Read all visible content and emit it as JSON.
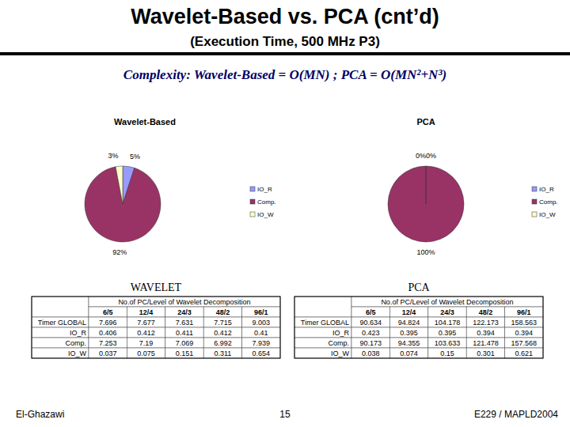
{
  "slide": {
    "title": "Wavelet-Based vs. PCA (cnt’d)",
    "subtitle": "(Execution Time, 500 MHz P3)",
    "complexity": "Complexity: Wavelet-Based = O(MN) ; PCA = O(MN²+N³)",
    "footer_left": "El-Ghazawi",
    "page": "15",
    "footer_right": "E229 / MAPLD2004"
  },
  "chart_data": [
    {
      "type": "pie",
      "title": "Wavelet-Based",
      "categories": [
        "IO_R",
        "Comp.",
        "IO_W"
      ],
      "values": [
        5,
        92,
        3
      ],
      "value_labels": [
        "5%",
        "92%",
        "3%"
      ],
      "colors": [
        "#9999ff",
        "#993366",
        "#ffffcc"
      ],
      "data_labels": true,
      "legend": "right"
    },
    {
      "type": "pie",
      "title": "PCA",
      "categories": [
        "IO_R",
        "Comp.",
        "IO_W"
      ],
      "values": [
        0,
        100,
        0
      ],
      "value_labels": [
        "0%",
        "100%",
        "0%"
      ],
      "colors": [
        "#9999ff",
        "#993366",
        "#ffffcc"
      ],
      "data_labels": true,
      "legend": "right"
    }
  ],
  "tables": [
    {
      "label": "WAVELET",
      "header": "No.of PC/Level of Wavelet Decomposition",
      "columns": [
        "6/5",
        "12/4",
        "24/3",
        "48/2",
        "96/1"
      ],
      "rows": [
        {
          "name": "Timer GLOBAL",
          "values": [
            7.696,
            7.677,
            7.631,
            7.715,
            9.003
          ]
        },
        {
          "name": "IO_R",
          "values": [
            0.406,
            0.412,
            0.411,
            0.412,
            0.41
          ]
        },
        {
          "name": "Comp.",
          "values": [
            7.253,
            7.19,
            7.069,
            6.992,
            7.939
          ]
        },
        {
          "name": "IO_W",
          "values": [
            0.037,
            0.075,
            0.151,
            0.311,
            0.654
          ]
        }
      ]
    },
    {
      "label": "PCA",
      "header": "No.of PC/Level of Wavelet Decomposition",
      "columns": [
        "6/5",
        "12/4",
        "24/3",
        "48/2",
        "96/1"
      ],
      "rows": [
        {
          "name": "Timer GLOBAL",
          "values": [
            90.634,
            94.824,
            104.178,
            122.173,
            158.563
          ]
        },
        {
          "name": "IO_R",
          "values": [
            0.423,
            0.395,
            0.395,
            0.394,
            0.394
          ]
        },
        {
          "name": "Comp.",
          "values": [
            90.173,
            94.355,
            103.633,
            121.478,
            157.568
          ]
        },
        {
          "name": "IO_W",
          "values": [
            0.038,
            0.074,
            0.15,
            0.301,
            0.621
          ]
        }
      ]
    }
  ]
}
